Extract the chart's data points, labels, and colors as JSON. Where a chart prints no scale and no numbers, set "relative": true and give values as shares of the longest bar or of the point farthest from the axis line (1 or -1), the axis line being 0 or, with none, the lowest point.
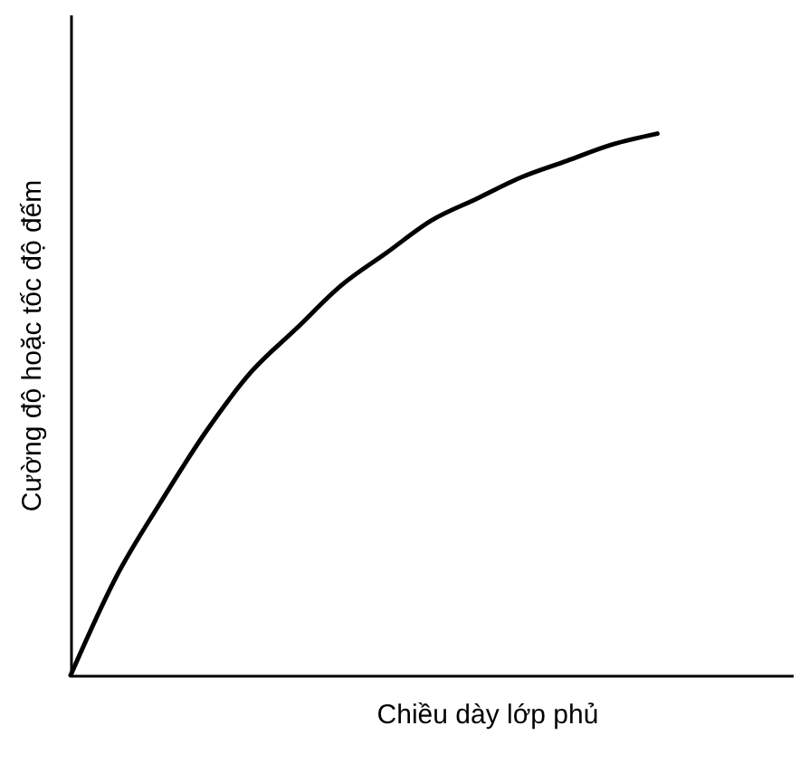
{
  "chart_data": {
    "type": "line",
    "relative": true,
    "xlabel": "Chiều dày lớp phủ",
    "ylabel": "Cường độ hoặc tốc độ đếm",
    "categories": [
      null,
      null,
      null,
      null,
      null,
      null,
      null,
      null,
      null,
      null,
      null,
      null,
      null,
      null,
      null,
      null,
      null
    ],
    "series": [
      {
        "color": "#000000",
        "values": [
          0,
          0.18,
          0.32,
          0.45,
          0.56,
          0.64,
          0.72,
          0.78,
          0.84,
          0.88,
          0.92,
          0.95,
          0.98,
          1.0,
          null,
          null,
          null
        ]
      }
    ],
    "grid": false,
    "tick_labels": false,
    "marker": "none",
    "line_style": "solid"
  }
}
